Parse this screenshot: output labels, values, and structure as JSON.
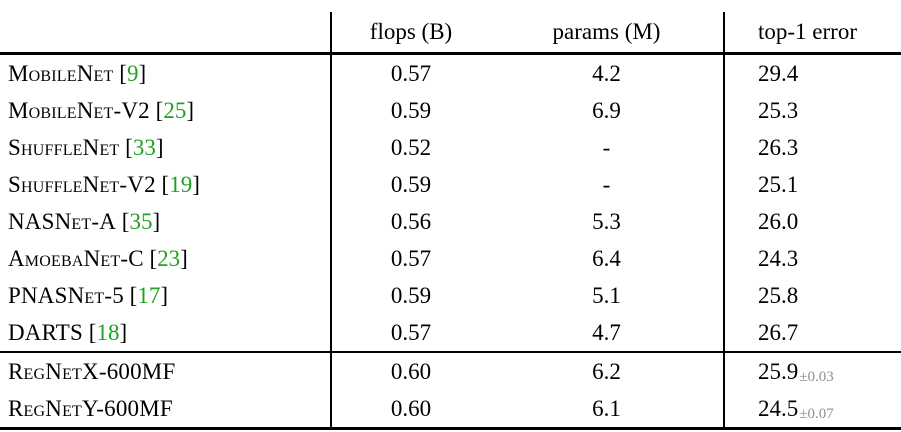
{
  "table": {
    "headers": {
      "model": "",
      "flops": "flops (B)",
      "params": "params (M)",
      "top1": "top-1 error"
    },
    "styles": {
      "citation_color": "#22a022",
      "pm_color": "#8f8f8f",
      "rule_color": "#000000",
      "background": "#ffffff"
    },
    "rows": [
      {
        "name": "MobileNet",
        "cite_open": " [",
        "cite": "9",
        "cite_close": "]",
        "flops": "0.57",
        "params": "4.2",
        "top1": "29.4"
      },
      {
        "name": "MobileNet-V2",
        "cite_open": " [",
        "cite": "25",
        "cite_close": "]",
        "flops": "0.59",
        "params": "6.9",
        "top1": "25.3"
      },
      {
        "name": "ShuffleNet",
        "cite_open": " [",
        "cite": "33",
        "cite_close": "]",
        "flops": "0.52",
        "params": "-",
        "top1": "26.3"
      },
      {
        "name": "ShuffleNet-V2",
        "cite_open": " [",
        "cite": "19",
        "cite_close": "]",
        "flops": "0.59",
        "params": "-",
        "top1": "25.1"
      },
      {
        "name": "NASNet-A",
        "cite_open": " [",
        "cite": "35",
        "cite_close": "]",
        "flops": "0.56",
        "params": "5.3",
        "top1": "26.0"
      },
      {
        "name": "AmoebaNet-C",
        "cite_open": " [",
        "cite": "23",
        "cite_close": "]",
        "flops": "0.57",
        "params": "6.4",
        "top1": "24.3"
      },
      {
        "name": "PNASNet-5",
        "cite_open": " [",
        "cite": "17",
        "cite_close": "]",
        "flops": "0.59",
        "params": "5.1",
        "top1": "25.8"
      },
      {
        "name": "DARTS",
        "cite_open": " [",
        "cite": "18",
        "cite_close": "]",
        "flops": "0.57",
        "params": "4.7",
        "top1": "26.7"
      },
      {
        "name": "RegNetX-600MF",
        "flops": "0.60",
        "params": "6.2",
        "top1": "25.9",
        "top1_pm": "±0.03"
      },
      {
        "name": "RegNetY-600MF",
        "flops": "0.60",
        "params": "6.1",
        "top1": "24.5",
        "top1_pm": "±0.07"
      }
    ]
  }
}
